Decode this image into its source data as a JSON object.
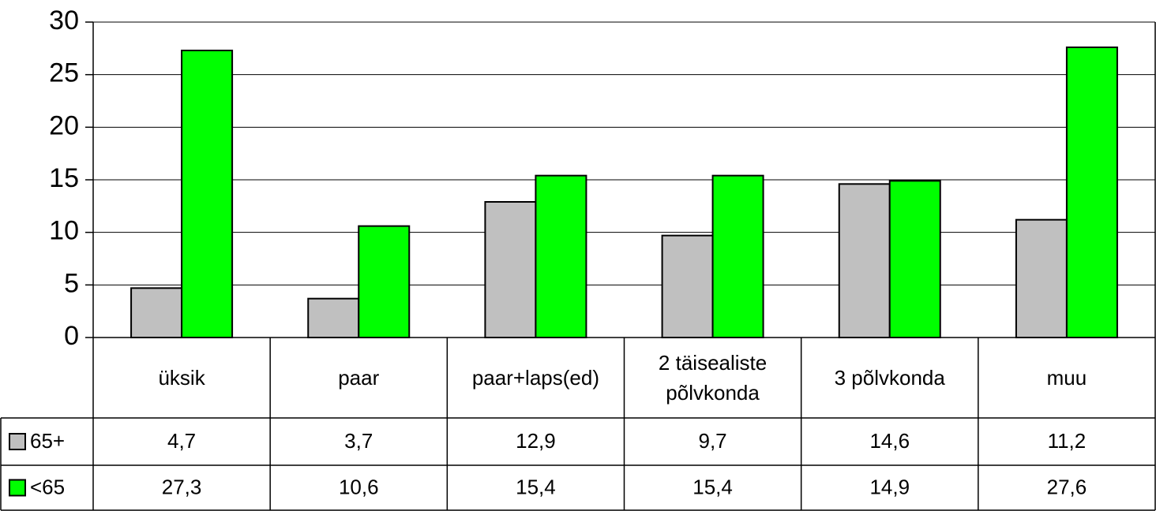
{
  "chart_data": {
    "type": "bar",
    "categories": [
      "üksik",
      "paar",
      "paar+laps(ed)",
      "2 täisealiste põlvkonda",
      "3 põlvkonda",
      "muu"
    ],
    "series": [
      {
        "name": "65+",
        "color": "#c0c0c0",
        "values": [
          4.7,
          3.7,
          12.9,
          9.7,
          14.6,
          11.2
        ],
        "value_labels": [
          "4,7",
          "3,7",
          "12,9",
          "9,7",
          "14,6",
          "11,2"
        ]
      },
      {
        "name": "<65",
        "color": "#00ff00",
        "values": [
          27.3,
          10.6,
          15.4,
          15.4,
          14.9,
          27.6
        ],
        "value_labels": [
          "27,3",
          "10,6",
          "15,4",
          "15,4",
          "14,9",
          "27,6"
        ]
      }
    ],
    "ylim": [
      0,
      30
    ],
    "yticks": [
      0,
      5,
      10,
      15,
      20,
      25,
      30
    ],
    "grid": true
  }
}
